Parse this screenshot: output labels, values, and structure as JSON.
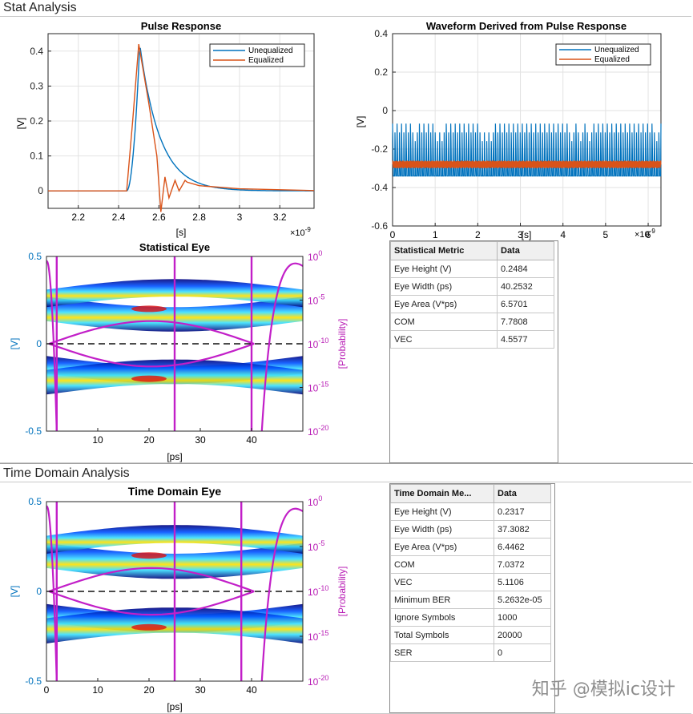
{
  "stat_section": {
    "title": "Stat Analysis"
  },
  "time_section": {
    "title": "Time Domain Analysis"
  },
  "pulse_plot": {
    "title": "Pulse Response",
    "xlabel": "[s]",
    "ylabel": "[V]",
    "x_exponent": "×10",
    "x_exponent_power": "-9",
    "x_ticks": [
      "2.2",
      "2.4",
      "2.6",
      "2.8",
      "3",
      "3.2"
    ],
    "y_ticks": [
      "0",
      "0.1",
      "0.2",
      "0.3",
      "0.4"
    ],
    "legend": [
      "Unequalized",
      "Equalized"
    ]
  },
  "waveform_plot": {
    "title": "Waveform Derived from Pulse Response",
    "xlabel": "[s]",
    "ylabel": "[V]",
    "x_exponent": "×10",
    "x_exponent_power": "-9",
    "x_ticks": [
      "0",
      "1",
      "2",
      "3",
      "4",
      "5",
      "6"
    ],
    "y_ticks": [
      "-0.6",
      "-0.4",
      "-0.2",
      "0",
      "0.2",
      "0.4"
    ],
    "legend": [
      "Unequalized",
      "Equalized"
    ]
  },
  "stat_eye": {
    "title": "Statistical Eye",
    "xlabel": "[ps]",
    "ylabel": "[V]",
    "y2label": "[Probability]",
    "x_ticks": [
      "10",
      "20",
      "30",
      "40"
    ],
    "y_ticks": [
      "-0.5",
      "0",
      "0.5"
    ],
    "y2_ticks": [
      {
        "base": "10",
        "exp": "-20"
      },
      {
        "base": "10",
        "exp": "-15"
      },
      {
        "base": "10",
        "exp": "-10"
      },
      {
        "base": "10",
        "exp": "-5"
      },
      {
        "base": "10",
        "exp": "0"
      }
    ]
  },
  "td_eye": {
    "title": "Time Domain Eye",
    "xlabel": "[ps]",
    "ylabel": "[V]",
    "y2label": "[Probability]",
    "x_ticks": [
      "0",
      "10",
      "20",
      "30",
      "40"
    ],
    "y_ticks": [
      "-0.5",
      "0",
      "0.5"
    ],
    "y2_ticks": [
      {
        "base": "10",
        "exp": "-20"
      },
      {
        "base": "10",
        "exp": "-15"
      },
      {
        "base": "10",
        "exp": "-10"
      },
      {
        "base": "10",
        "exp": "-5"
      },
      {
        "base": "10",
        "exp": "0"
      }
    ]
  },
  "stat_table": {
    "headers": [
      "Statistical Metric",
      "Data"
    ],
    "rows": [
      [
        "Eye Height (V)",
        "0.2484"
      ],
      [
        "Eye Width (ps)",
        "40.2532"
      ],
      [
        "Eye Area (V*ps)",
        "6.5701"
      ],
      [
        "COM",
        "7.7808"
      ],
      [
        "VEC",
        "4.5577"
      ]
    ]
  },
  "td_table": {
    "headers": [
      "Time Domain Me...",
      "Data"
    ],
    "rows": [
      [
        "Eye Height (V)",
        "0.2317"
      ],
      [
        "Eye Width (ps)",
        "37.3082"
      ],
      [
        "Eye Area (V*ps)",
        "6.4462"
      ],
      [
        "COM",
        "7.0372"
      ],
      [
        "VEC",
        "5.1106"
      ],
      [
        "Minimum BER",
        "5.2632e-05"
      ],
      [
        "Ignore Symbols",
        "1000"
      ],
      [
        "Total Symbols",
        "20000"
      ],
      [
        "SER",
        "0"
      ]
    ]
  },
  "watermark": "知乎 @模拟ic设计",
  "colors": {
    "unequalized": "#1f77b4",
    "equalized": "#d95319",
    "contour": "#c21fc8",
    "axis_left": "#0072bd",
    "axis_right": "#b81cb5"
  }
}
